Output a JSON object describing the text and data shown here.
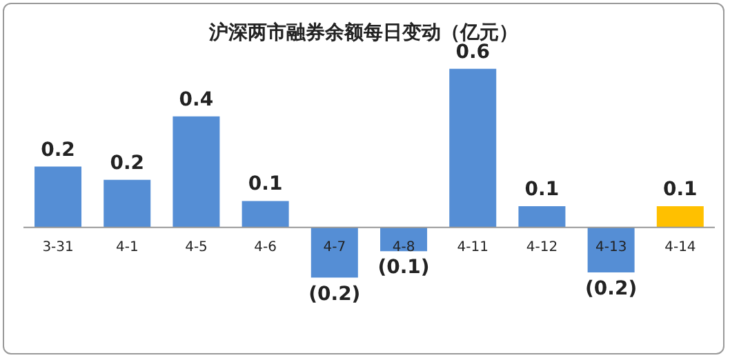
{
  "chart_data": {
    "type": "bar",
    "title": "沪深两市融券余额每日变动（亿元）",
    "categories": [
      "3-31",
      "4-1",
      "4-5",
      "4-6",
      "4-7",
      "4-8",
      "4-11",
      "4-12",
      "4-13",
      "4-14"
    ],
    "values": [
      0.23,
      0.18,
      0.42,
      0.1,
      -0.19,
      -0.09,
      0.6,
      0.08,
      -0.17,
      0.08
    ],
    "value_labels": [
      "0.2",
      "0.2",
      "0.4",
      "0.1",
      "(0.2)",
      "(0.1)",
      "0.6",
      "0.1",
      "(0.2)",
      "0.1"
    ],
    "colors": [
      "#558ed5",
      "#558ed5",
      "#558ed5",
      "#558ed5",
      "#558ed5",
      "#558ed5",
      "#558ed5",
      "#558ed5",
      "#558ed5",
      "#ffc000"
    ],
    "grid": false,
    "legend": false
  }
}
